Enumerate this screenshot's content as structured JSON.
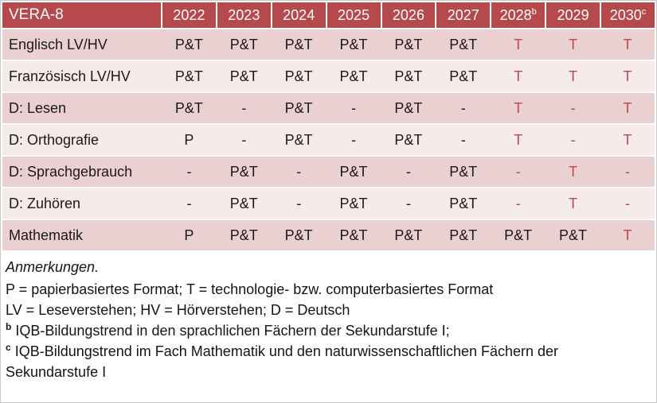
{
  "colors": {
    "header_bg": "#b5494c",
    "header_text": "#ffffff",
    "band_dark": "#ead0d0",
    "band_light": "#f6ebeb",
    "red_text": "#b9494c",
    "body_text": "#1a1a1a"
  },
  "table": {
    "title": "VERA-8",
    "years": [
      {
        "label": "2022",
        "sup": ""
      },
      {
        "label": "2023",
        "sup": ""
      },
      {
        "label": "2024",
        "sup": ""
      },
      {
        "label": "2025",
        "sup": ""
      },
      {
        "label": "2026",
        "sup": ""
      },
      {
        "label": "2027",
        "sup": ""
      },
      {
        "label": "2028",
        "sup": "b"
      },
      {
        "label": "2029",
        "sup": ""
      },
      {
        "label": "2030",
        "sup": "c"
      }
    ],
    "rows": [
      {
        "label": "Englisch LV/HV",
        "cells": [
          {
            "text": "P&T",
            "red": false
          },
          {
            "text": "P&T",
            "red": false
          },
          {
            "text": "P&T",
            "red": false
          },
          {
            "text": "P&T",
            "red": false
          },
          {
            "text": "P&T",
            "red": false
          },
          {
            "text": "P&T",
            "red": false
          },
          {
            "text": "T",
            "red": true
          },
          {
            "text": "T",
            "red": true
          },
          {
            "text": "T",
            "red": true
          }
        ]
      },
      {
        "label": "Französisch LV/HV",
        "cells": [
          {
            "text": "P&T",
            "red": false
          },
          {
            "text": "P&T",
            "red": false
          },
          {
            "text": "P&T",
            "red": false
          },
          {
            "text": "P&T",
            "red": false
          },
          {
            "text": "P&T",
            "red": false
          },
          {
            "text": "P&T",
            "red": false
          },
          {
            "text": "T",
            "red": true
          },
          {
            "text": "T",
            "red": true
          },
          {
            "text": "T",
            "red": true
          }
        ]
      },
      {
        "label": "D: Lesen",
        "cells": [
          {
            "text": "P&T",
            "red": false
          },
          {
            "text": "-",
            "red": false
          },
          {
            "text": "P&T",
            "red": false
          },
          {
            "text": "-",
            "red": false
          },
          {
            "text": "P&T",
            "red": false
          },
          {
            "text": "-",
            "red": false
          },
          {
            "text": "T",
            "red": true
          },
          {
            "text": "-",
            "red": true
          },
          {
            "text": "T",
            "red": true
          }
        ]
      },
      {
        "label": "D: Orthografie",
        "cells": [
          {
            "text": "P",
            "red": false
          },
          {
            "text": "-",
            "red": false
          },
          {
            "text": "P&T",
            "red": false
          },
          {
            "text": "-",
            "red": false
          },
          {
            "text": "P&T",
            "red": false
          },
          {
            "text": "-",
            "red": false
          },
          {
            "text": "T",
            "red": true
          },
          {
            "text": "-",
            "red": true
          },
          {
            "text": "T",
            "red": true
          }
        ]
      },
      {
        "label": "D: Sprachgebrauch",
        "cells": [
          {
            "text": "-",
            "red": false
          },
          {
            "text": "P&T",
            "red": false
          },
          {
            "text": "-",
            "red": false
          },
          {
            "text": "P&T",
            "red": false
          },
          {
            "text": "-",
            "red": false
          },
          {
            "text": "P&T",
            "red": false
          },
          {
            "text": "-",
            "red": true
          },
          {
            "text": "T",
            "red": true
          },
          {
            "text": "-",
            "red": true
          }
        ]
      },
      {
        "label": "D: Zuhören",
        "cells": [
          {
            "text": "-",
            "red": false
          },
          {
            "text": "P&T",
            "red": false
          },
          {
            "text": "-",
            "red": false
          },
          {
            "text": "P&T",
            "red": false
          },
          {
            "text": "-",
            "red": false
          },
          {
            "text": "P&T",
            "red": false
          },
          {
            "text": "-",
            "red": true
          },
          {
            "text": "T",
            "red": true
          },
          {
            "text": "-",
            "red": true
          }
        ]
      },
      {
        "label": "Mathematik",
        "cells": [
          {
            "text": "P",
            "red": false
          },
          {
            "text": "P&T",
            "red": false
          },
          {
            "text": "P&T",
            "red": false
          },
          {
            "text": "P&T",
            "red": false
          },
          {
            "text": "P&T",
            "red": false
          },
          {
            "text": "P&T",
            "red": false
          },
          {
            "text": "P&T",
            "red": false
          },
          {
            "text": "P&T",
            "red": false
          },
          {
            "text": "T",
            "red": true
          }
        ]
      }
    ]
  },
  "notes": {
    "title": "Anmerkungen.",
    "lines": [
      {
        "sup": "",
        "text": "P = papierbasiertes Format; T = technologie- bzw. computerbasiertes Format"
      },
      {
        "sup": "",
        "text": "LV = Leseverstehen; HV = Hörverstehen; D = Deutsch"
      },
      {
        "sup": "b",
        "text": "IQB-Bildungstrend in den sprachlichen Fächern der Sekundarstufe I;"
      },
      {
        "sup": "c",
        "text": "IQB-Bildungstrend im Fach Mathematik und den naturwissenschaftlichen Fächern der Sekundarstufe I"
      }
    ]
  }
}
